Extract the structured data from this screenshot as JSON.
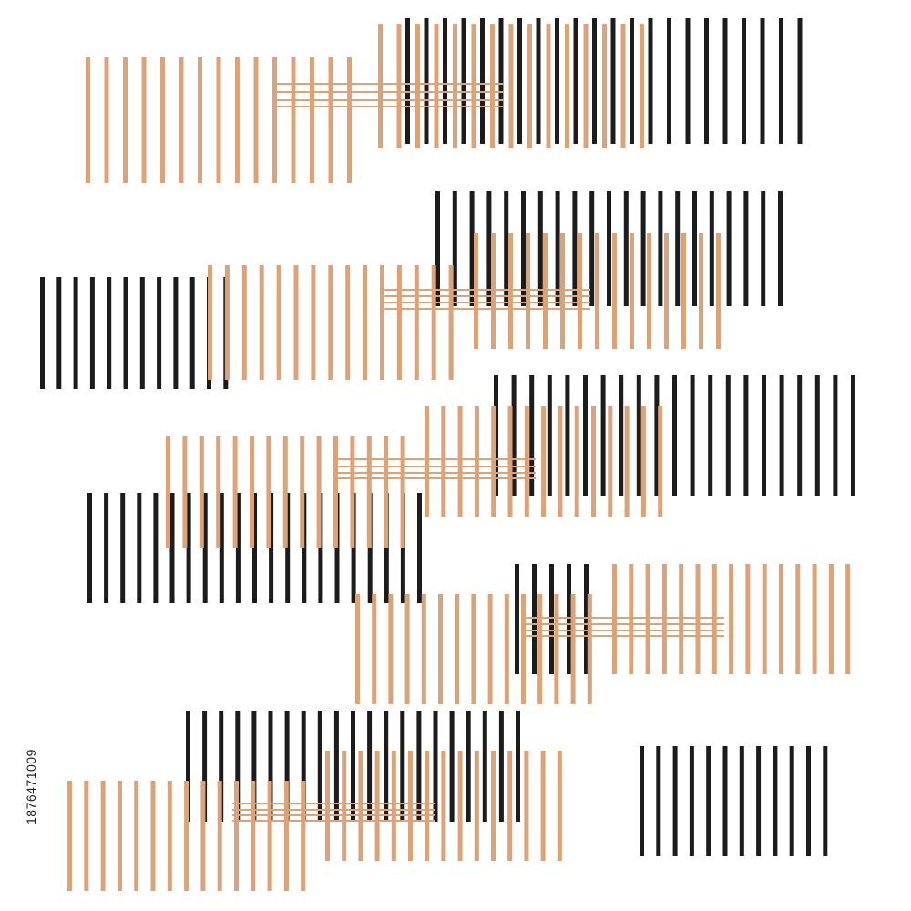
{
  "artwork": {
    "description_type": "abstract-stripe-pattern",
    "colors": {
      "background": "#ffffff",
      "black_stripe": "#1c1c1c",
      "tan_stripe": "#dba377",
      "watermark_text": "#222222"
    }
  },
  "watermark": {
    "stock_id": "1876471009"
  }
}
